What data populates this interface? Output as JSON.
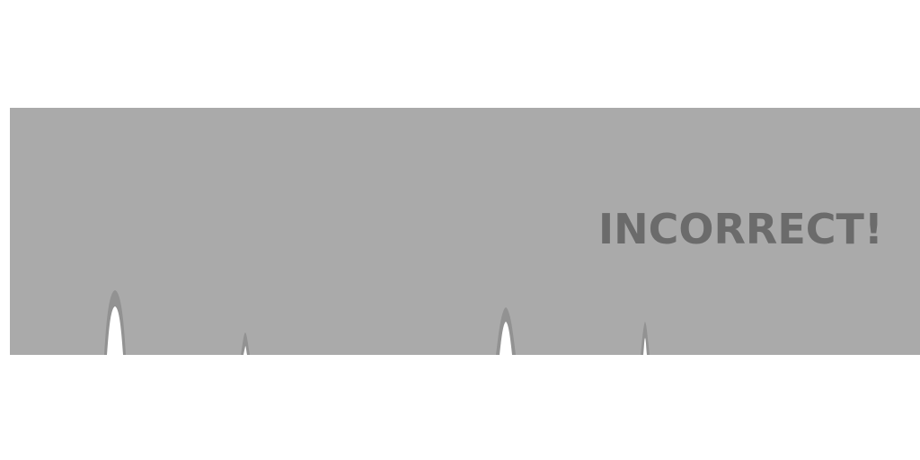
{
  "feedback": {
    "message": "INCORRECT!"
  },
  "colors": {
    "page_background": "#ffffff",
    "banner": "#aaaaaa",
    "message_text": "#6b6b6b",
    "spike_outer": "#929292",
    "spike_inner": "#ffffff"
  },
  "icons": {
    "spike": "spike-shape-icon"
  }
}
